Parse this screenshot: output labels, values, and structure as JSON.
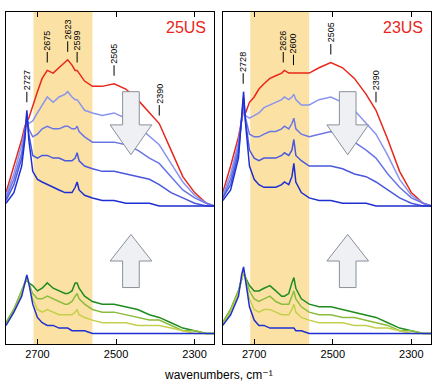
{
  "chart_data": [
    {
      "type": "line",
      "title": "25US",
      "xlabel": "wavenumbers, cm⁻¹",
      "x": [
        2780,
        2760,
        2740,
        2732,
        2727,
        2722,
        2712,
        2700,
        2688,
        2675,
        2660,
        2645,
        2630,
        2623,
        2612,
        2604,
        2599,
        2594,
        2580,
        2560,
        2535,
        2505,
        2475,
        2445,
        2415,
        2390,
        2360,
        2330,
        2300,
        2270,
        2250
      ],
      "xlim": [
        2780,
        2250
      ],
      "xticks": [
        2700,
        2500,
        2300
      ],
      "ylim": [
        0,
        12.5
      ],
      "tick_labels": "x",
      "grid": false,
      "band": [
        2710,
        2560
      ],
      "annotations": [
        {
          "text": "2727",
          "x": 2727
        },
        {
          "text": "2675",
          "x": 2675
        },
        {
          "text": "2623",
          "x": 2623
        },
        {
          "text": "2599",
          "x": 2599
        },
        {
          "text": "2505",
          "x": 2505
        },
        {
          "text": "2390",
          "x": 2390
        }
      ],
      "series": [
        {
          "color": "#e8261a",
          "values": [
            5.7,
            6.7,
            7.7,
            8.2,
            8.4,
            8.5,
            9.0,
            9.5,
            10.0,
            10.3,
            10.2,
            10.4,
            10.6,
            10.7,
            10.5,
            10.3,
            10.3,
            10.2,
            9.9,
            9.7,
            9.7,
            9.8,
            9.6,
            9.2,
            8.7,
            8.3,
            7.3,
            6.3,
            5.7,
            5.3,
            5.2
          ]
        },
        {
          "color": "#8a94ee",
          "values": [
            5.6,
            6.4,
            7.5,
            8.0,
            8.4,
            8.3,
            8.4,
            8.7,
            9.0,
            9.3,
            9.1,
            9.3,
            9.4,
            9.5,
            9.3,
            9.2,
            9.2,
            9.1,
            8.8,
            8.7,
            8.6,
            8.7,
            8.5,
            8.2,
            7.8,
            7.5,
            6.8,
            6.1,
            5.6,
            5.3,
            5.2
          ]
        },
        {
          "color": "#6a76e6",
          "values": [
            5.5,
            6.2,
            7.2,
            7.9,
            8.5,
            8.1,
            7.8,
            7.9,
            8.1,
            8.2,
            8.1,
            8.1,
            8.2,
            8.2,
            8.1,
            8.1,
            8.2,
            8.0,
            7.8,
            7.6,
            7.6,
            7.6,
            7.5,
            7.3,
            7.0,
            6.8,
            6.3,
            5.8,
            5.5,
            5.3,
            5.2
          ]
        },
        {
          "color": "#4a58de",
          "values": [
            5.4,
            6.0,
            7.0,
            7.8,
            8.7,
            7.9,
            7.1,
            7.0,
            7.1,
            7.1,
            7.0,
            7.0,
            6.9,
            6.9,
            6.9,
            7.0,
            7.2,
            6.9,
            6.7,
            6.6,
            6.5,
            6.5,
            6.4,
            6.3,
            6.2,
            6.0,
            5.7,
            5.5,
            5.3,
            5.2,
            5.2
          ]
        },
        {
          "color": "#1f2fd1",
          "values": [
            5.3,
            5.7,
            6.7,
            7.7,
            8.8,
            7.7,
            6.5,
            6.2,
            6.1,
            6.0,
            5.9,
            5.8,
            5.7,
            5.7,
            5.7,
            5.9,
            6.1,
            5.8,
            5.6,
            5.5,
            5.4,
            5.4,
            5.3,
            5.3,
            5.3,
            5.2,
            5.2,
            5.2,
            5.2,
            5.2,
            5.2
          ]
        },
        {
          "color": "#1e8c1e",
          "values": [
            0.8,
            1.3,
            2.0,
            2.3,
            2.4,
            2.3,
            2.2,
            2.0,
            2.1,
            2.3,
            2.1,
            2.0,
            1.9,
            1.9,
            2.0,
            2.3,
            2.3,
            2.1,
            1.8,
            1.6,
            1.5,
            1.5,
            1.4,
            1.3,
            1.1,
            1.0,
            0.8,
            0.6,
            0.5,
            0.4,
            0.4
          ]
        },
        {
          "color": "#8cbc3c",
          "values": [
            0.8,
            1.3,
            2.0,
            2.3,
            2.5,
            2.3,
            1.9,
            1.7,
            1.7,
            1.8,
            1.7,
            1.6,
            1.5,
            1.5,
            1.6,
            1.8,
            1.9,
            1.7,
            1.5,
            1.3,
            1.2,
            1.2,
            1.1,
            1.0,
            0.9,
            0.9,
            0.7,
            0.5,
            0.5,
            0.4,
            0.4
          ]
        },
        {
          "color": "#c4d04c",
          "values": [
            0.7,
            1.2,
            1.9,
            2.3,
            2.5,
            2.3,
            1.7,
            1.3,
            1.2,
            1.3,
            1.2,
            1.1,
            1.1,
            1.1,
            1.1,
            1.2,
            1.3,
            1.1,
            1.0,
            0.9,
            0.8,
            0.8,
            0.8,
            0.7,
            0.7,
            0.7,
            0.6,
            0.5,
            0.4,
            0.4,
            0.4
          ]
        },
        {
          "color": "#2030d0",
          "values": [
            0.7,
            1.2,
            1.8,
            2.3,
            2.6,
            2.3,
            1.5,
            1.0,
            0.8,
            0.7,
            0.7,
            0.6,
            0.6,
            0.6,
            0.5,
            0.5,
            0.5,
            0.5,
            0.5,
            0.4,
            0.4,
            0.4,
            0.4,
            0.4,
            0.4,
            0.4,
            0.4,
            0.4,
            0.4,
            0.4,
            0.4
          ]
        }
      ]
    },
    {
      "type": "line",
      "title": "23US",
      "x": [
        2780,
        2760,
        2740,
        2732,
        2727,
        2722,
        2712,
        2700,
        2688,
        2675,
        2660,
        2645,
        2630,
        2623,
        2612,
        2604,
        2599,
        2594,
        2580,
        2560,
        2535,
        2505,
        2475,
        2445,
        2415,
        2390,
        2360,
        2330,
        2300,
        2270,
        2250
      ],
      "xlim": [
        2780,
        2250
      ],
      "xticks": [
        2700,
        2500,
        2300
      ],
      "ylim": [
        0,
        12.5
      ],
      "tick_labels": "x",
      "grid": false,
      "band": [
        2710,
        2560
      ],
      "annotations": [
        {
          "text": "2728",
          "x": 2728
        },
        {
          "text": "2626",
          "x": 2626
        },
        {
          "text": "2600",
          "x": 2600
        },
        {
          "text": "2505",
          "x": 2505
        },
        {
          "text": "2390",
          "x": 2390
        }
      ],
      "series": [
        {
          "color": "#e8261a",
          "values": [
            5.7,
            6.7,
            7.8,
            8.5,
            8.8,
            8.7,
            9.1,
            9.3,
            9.6,
            9.8,
            10.0,
            10.1,
            10.2,
            10.3,
            10.2,
            10.2,
            10.2,
            10.2,
            10.2,
            10.2,
            10.4,
            10.6,
            10.4,
            10.0,
            9.4,
            8.8,
            7.7,
            6.5,
            5.7,
            5.3,
            5.2
          ]
        },
        {
          "color": "#8a94ee",
          "values": [
            5.6,
            6.4,
            7.6,
            8.5,
            8.9,
            8.6,
            8.5,
            8.6,
            8.7,
            8.9,
            9.0,
            9.1,
            9.2,
            9.3,
            9.2,
            9.3,
            9.4,
            9.2,
            9.0,
            9.0,
            9.2,
            9.3,
            9.1,
            8.8,
            8.3,
            7.9,
            7.1,
            6.2,
            5.6,
            5.3,
            5.2
          ]
        },
        {
          "color": "#6a76e6",
          "values": [
            5.5,
            6.2,
            7.4,
            8.5,
            9.1,
            8.5,
            7.9,
            7.8,
            7.8,
            7.9,
            8.0,
            8.0,
            8.1,
            8.2,
            8.1,
            8.3,
            8.5,
            8.1,
            7.9,
            7.8,
            7.9,
            8.0,
            7.8,
            7.6,
            7.3,
            7.0,
            6.4,
            5.9,
            5.5,
            5.3,
            5.2
          ]
        },
        {
          "color": "#4a58de",
          "values": [
            5.5,
            6.0,
            7.2,
            8.5,
            9.3,
            8.4,
            7.3,
            7.0,
            6.9,
            7.0,
            7.0,
            7.0,
            7.1,
            7.2,
            7.1,
            7.3,
            7.7,
            7.1,
            6.9,
            6.7,
            6.7,
            6.7,
            6.6,
            6.4,
            6.3,
            6.1,
            5.8,
            5.5,
            5.3,
            5.2,
            5.2
          ]
        },
        {
          "color": "#1f2fd1",
          "values": [
            5.4,
            5.8,
            7.0,
            8.5,
            9.5,
            8.3,
            6.7,
            6.2,
            6.0,
            5.9,
            5.9,
            5.9,
            6.0,
            6.1,
            6.0,
            6.3,
            6.8,
            6.1,
            5.7,
            5.5,
            5.4,
            5.4,
            5.3,
            5.3,
            5.3,
            5.2,
            5.2,
            5.2,
            5.2,
            5.2,
            5.2
          ]
        },
        {
          "color": "#1e8c1e",
          "values": [
            0.8,
            1.3,
            2.0,
            2.5,
            2.7,
            2.5,
            2.2,
            2.0,
            2.0,
            2.1,
            2.2,
            2.0,
            1.8,
            1.8,
            1.9,
            2.3,
            2.5,
            2.1,
            1.7,
            1.5,
            1.4,
            1.4,
            1.3,
            1.2,
            1.1,
            1.0,
            0.8,
            0.6,
            0.5,
            0.4,
            0.4
          ]
        },
        {
          "color": "#8cbc3c",
          "values": [
            0.8,
            1.3,
            2.0,
            2.5,
            2.7,
            2.5,
            2.0,
            1.7,
            1.6,
            1.7,
            1.8,
            1.6,
            1.5,
            1.5,
            1.5,
            1.8,
            2.0,
            1.7,
            1.4,
            1.2,
            1.1,
            1.1,
            1.0,
            1.0,
            0.9,
            0.8,
            0.7,
            0.5,
            0.5,
            0.4,
            0.4
          ]
        },
        {
          "color": "#c4d04c",
          "values": [
            0.7,
            1.2,
            1.9,
            2.5,
            2.8,
            2.4,
            1.7,
            1.3,
            1.2,
            1.3,
            1.3,
            1.2,
            1.1,
            1.1,
            1.1,
            1.3,
            1.5,
            1.2,
            1.0,
            0.9,
            0.8,
            0.8,
            0.8,
            0.7,
            0.7,
            0.6,
            0.6,
            0.5,
            0.4,
            0.4,
            0.4
          ]
        },
        {
          "color": "#2030d0",
          "values": [
            0.7,
            1.1,
            1.8,
            2.6,
            2.9,
            2.4,
            1.4,
            0.9,
            0.7,
            0.7,
            0.6,
            0.6,
            0.6,
            0.6,
            0.6,
            0.6,
            0.6,
            0.5,
            0.5,
            0.4,
            0.4,
            0.4,
            0.4,
            0.4,
            0.4,
            0.4,
            0.4,
            0.4,
            0.4,
            0.4,
            0.4
          ]
        }
      ]
    }
  ]
}
